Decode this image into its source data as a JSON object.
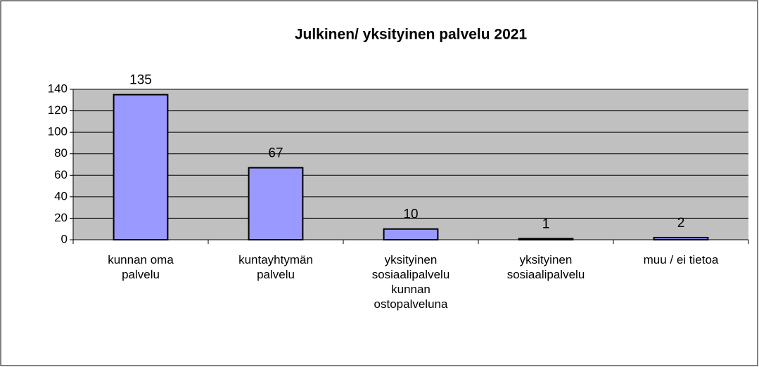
{
  "chart_data": {
    "type": "bar",
    "title": "Julkinen/ yksityinen palvelu 2021",
    "categories": [
      "kunnan oma palvelu",
      "kuntayhtymän palvelu",
      "yksityinen sosiaalipalvelu kunnan ostopalveluna",
      "yksityinen sosiaalipalvelu",
      "muu / ei tietoa"
    ],
    "values": [
      135,
      67,
      10,
      1,
      2
    ],
    "color": "#9999ff",
    "ylim": [
      0,
      140
    ],
    "yticks": [
      0,
      20,
      40,
      60,
      80,
      100,
      120,
      140
    ],
    "grid": true
  }
}
